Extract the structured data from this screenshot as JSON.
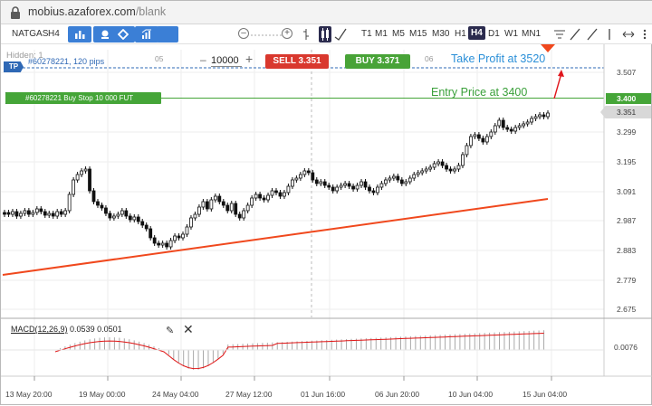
{
  "browser": {
    "url_host": "mobius.azaforex.com",
    "url_path": "/blank"
  },
  "toolbar": {
    "symbol": "NATGAS",
    "period": "H4",
    "lot_value": "10000",
    "timeframes": [
      "T1",
      "M1",
      "M5",
      "M15",
      "M30",
      "H1",
      "H4",
      "D1",
      "W1",
      "MN1"
    ],
    "active_timeframe": "H4",
    "accent": "#3b7fd6"
  },
  "chart": {
    "hidden_label": "Hidden: 1",
    "tp_badge": "TP",
    "tp_line_text": "#60278221, 120 pips",
    "order_badge": "#60278221 Buy Stop 10 000 FUT",
    "sell_label": "SELL 3.351",
    "buy_label": "BUY 3.371",
    "day_labels": [
      "05",
      "06"
    ],
    "tp_annotation": "Take Profit at 3520",
    "entry_annotation": "Entry Price at 3400",
    "y_ticks": [
      "3.507",
      "3.299",
      "3.195",
      "3.091",
      "2.987",
      "2.883",
      "2.779",
      "2.675"
    ],
    "entry_price": "3.400",
    "current_price": "3.351",
    "x_ticks": [
      "13 May 20:00",
      "19 May 00:00",
      "24 May 04:00",
      "27 May 12:00",
      "01 Jun 16:00",
      "06 Jun 20:00",
      "10 Jun 04:00",
      "15 Jun 04:00"
    ],
    "colors": {
      "sell": "#d9382e",
      "buy": "#48a337",
      "tp": "#2e68b5",
      "entry": "#45a538",
      "trend": "#f0481d",
      "annotation_blue": "#2a8fd8"
    }
  },
  "macd": {
    "label": "MACD(12,26,9)",
    "values": "0.0539 0.0501",
    "axis_value": "0.0076"
  }
}
